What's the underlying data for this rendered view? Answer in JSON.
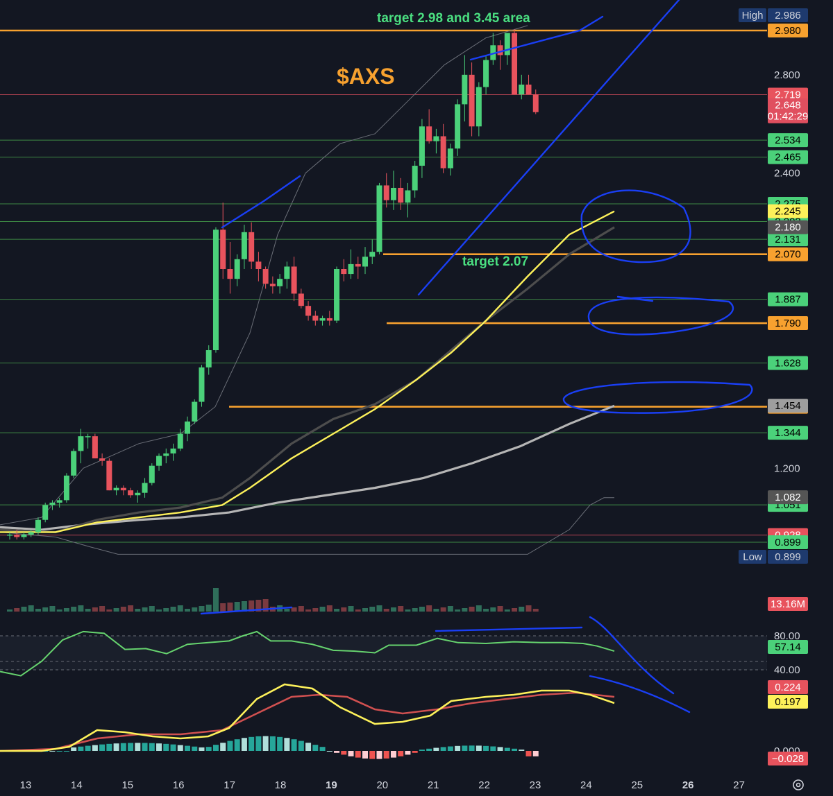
{
  "chart_data": {
    "type": "candlestick",
    "title": "$AXS",
    "annotations": [
      "target  2.98 and 3.45 area",
      "target  2.07"
    ],
    "x_ticks": [
      "13",
      "14",
      "15",
      "16",
      "17",
      "18",
      "19",
      "20",
      "21",
      "22",
      "23",
      "24",
      "25",
      "26",
      "27"
    ],
    "x_bold_ticks": [
      "19",
      "26"
    ],
    "y_ticks": [
      "2.800",
      "2.400",
      "1.200"
    ],
    "ylim": [
      0.85,
      3.0
    ],
    "high": {
      "label": "High",
      "value": "2.986"
    },
    "low": {
      "label": "Low",
      "value": "0.899"
    },
    "price_levels": [
      {
        "value": 2.98,
        "label": "2.980",
        "color": "#f7a12f",
        "style": "orange-line"
      },
      {
        "value": 2.719,
        "label": "2.719",
        "color": "#e04f5f",
        "style": "red-line"
      },
      {
        "value": 2.534,
        "label": "2.534",
        "color": "#4caf50",
        "style": "green-line"
      },
      {
        "value": 2.465,
        "label": "2.465",
        "color": "#4caf50",
        "style": "green-line"
      },
      {
        "value": 2.275,
        "label": "2.275",
        "color": "#4caf50",
        "style": "green-line"
      },
      {
        "value": 2.203,
        "label": "2.203",
        "color": "#4caf50",
        "style": "green-line"
      },
      {
        "value": 2.131,
        "label": "2.131",
        "color": "#4caf50",
        "style": "green-line"
      },
      {
        "value": 2.07,
        "label": "2.070",
        "color": "#f7a12f",
        "style": "orange-line"
      },
      {
        "value": 1.887,
        "label": "1.887",
        "color": "#4caf50",
        "style": "green-line"
      },
      {
        "value": 1.79,
        "label": "1.790",
        "color": "#f7a12f",
        "style": "orange-line"
      },
      {
        "value": 1.628,
        "label": "1.628",
        "color": "#4caf50",
        "style": "green-line"
      },
      {
        "value": 1.45,
        "label": "1.450",
        "color": "#f7a12f",
        "style": "orange-line"
      },
      {
        "value": 1.344,
        "label": "1.344",
        "color": "#4caf50",
        "style": "green-line"
      },
      {
        "value": 1.051,
        "label": "1.051",
        "color": "#4caf50",
        "style": "green-line"
      },
      {
        "value": 0.928,
        "label": "0.928",
        "color": "#e04f5f",
        "style": "red-line"
      },
      {
        "value": 0.899,
        "label": "0.899",
        "color": "#4caf50",
        "style": "green-line"
      }
    ],
    "axis_badges": [
      {
        "value": 2.648,
        "label": "2.648",
        "sub": "01:42:29",
        "color": "#e04f5f"
      },
      {
        "value": 2.245,
        "label": "2.245",
        "color": "#fdf15a"
      },
      {
        "value": 2.18,
        "label": "2.180",
        "color": "#555555"
      },
      {
        "value": 1.454,
        "label": "1.454",
        "color": "#9e9e9e"
      },
      {
        "value": 1.082,
        "label": "1.082",
        "color": "#555555"
      }
    ],
    "candles": [
      [
        0.93,
        0.94,
        0.91,
        0.93
      ],
      [
        0.93,
        0.95,
        0.91,
        0.92
      ],
      [
        0.92,
        0.94,
        0.91,
        0.93
      ],
      [
        0.93,
        0.95,
        0.92,
        0.94
      ],
      [
        0.94,
        1.0,
        0.93,
        0.99
      ],
      [
        0.99,
        1.06,
        0.98,
        1.05
      ],
      [
        1.05,
        1.07,
        1.03,
        1.06
      ],
      [
        1.06,
        1.08,
        1.04,
        1.07
      ],
      [
        1.07,
        1.18,
        1.06,
        1.17
      ],
      [
        1.17,
        1.28,
        1.16,
        1.27
      ],
      [
        1.27,
        1.36,
        1.22,
        1.33
      ],
      [
        1.33,
        1.34,
        1.28,
        1.33
      ],
      [
        1.33,
        1.34,
        1.24,
        1.24
      ],
      [
        1.24,
        1.26,
        1.21,
        1.23
      ],
      [
        1.23,
        1.24,
        1.11,
        1.11
      ],
      [
        1.11,
        1.13,
        1.09,
        1.12
      ],
      [
        1.12,
        1.13,
        1.09,
        1.11
      ],
      [
        1.11,
        1.12,
        1.08,
        1.09
      ],
      [
        1.09,
        1.11,
        1.06,
        1.1
      ],
      [
        1.1,
        1.16,
        1.08,
        1.14
      ],
      [
        1.14,
        1.22,
        1.13,
        1.21
      ],
      [
        1.21,
        1.26,
        1.19,
        1.25
      ],
      [
        1.25,
        1.28,
        1.22,
        1.26
      ],
      [
        1.26,
        1.3,
        1.23,
        1.28
      ],
      [
        1.28,
        1.36,
        1.27,
        1.34
      ],
      [
        1.34,
        1.41,
        1.31,
        1.39
      ],
      [
        1.39,
        1.48,
        1.38,
        1.47
      ],
      [
        1.47,
        1.62,
        1.45,
        1.61
      ],
      [
        1.61,
        1.7,
        1.58,
        1.68
      ],
      [
        1.68,
        2.18,
        1.67,
        2.17
      ],
      [
        2.17,
        2.28,
        1.97,
        2.01
      ],
      [
        2.01,
        2.12,
        1.91,
        1.97
      ],
      [
        1.97,
        2.07,
        1.94,
        2.05
      ],
      [
        2.05,
        2.19,
        2.01,
        2.16
      ],
      [
        2.16,
        2.2,
        2.01,
        2.04
      ],
      [
        2.04,
        2.08,
        1.96,
        2.01
      ],
      [
        2.01,
        2.02,
        1.93,
        1.95
      ],
      [
        1.95,
        1.98,
        1.91,
        1.94
      ],
      [
        1.94,
        1.99,
        1.91,
        1.97
      ],
      [
        1.97,
        2.04,
        1.93,
        2.02
      ],
      [
        2.02,
        2.06,
        1.88,
        1.91
      ],
      [
        1.91,
        1.93,
        1.85,
        1.86
      ],
      [
        1.86,
        1.88,
        1.8,
        1.82
      ],
      [
        1.82,
        1.84,
        1.78,
        1.8
      ],
      [
        1.8,
        1.82,
        1.78,
        1.81
      ],
      [
        1.81,
        1.84,
        1.78,
        1.8
      ],
      [
        1.8,
        2.02,
        1.79,
        2.01
      ],
      [
        2.01,
        2.05,
        1.96,
        1.99
      ],
      [
        1.99,
        2.09,
        1.97,
        2.03
      ],
      [
        2.03,
        2.06,
        1.97,
        2.02
      ],
      [
        2.02,
        2.1,
        1.99,
        2.06
      ],
      [
        2.06,
        2.13,
        2.03,
        2.08
      ],
      [
        2.08,
        2.36,
        2.07,
        2.35
      ],
      [
        2.35,
        2.4,
        2.26,
        2.29
      ],
      [
        2.29,
        2.41,
        2.25,
        2.34
      ],
      [
        2.34,
        2.38,
        2.25,
        2.28
      ],
      [
        2.28,
        2.36,
        2.22,
        2.33
      ],
      [
        2.33,
        2.45,
        2.3,
        2.43
      ],
      [
        2.43,
        2.62,
        2.38,
        2.59
      ],
      [
        2.59,
        2.66,
        2.52,
        2.53
      ],
      [
        2.53,
        2.58,
        2.48,
        2.55
      ],
      [
        2.55,
        2.6,
        2.4,
        2.42
      ],
      [
        2.42,
        2.52,
        2.39,
        2.5
      ],
      [
        2.5,
        2.7,
        2.47,
        2.68
      ],
      [
        2.68,
        2.88,
        2.61,
        2.8
      ],
      [
        2.8,
        2.85,
        2.55,
        2.59
      ],
      [
        2.59,
        2.77,
        2.55,
        2.75
      ],
      [
        2.75,
        2.88,
        2.72,
        2.86
      ],
      [
        2.86,
        2.97,
        2.84,
        2.92
      ],
      [
        2.92,
        2.94,
        2.82,
        2.88
      ],
      [
        2.88,
        2.95,
        2.84,
        2.97
      ],
      [
        2.97,
        2.986,
        2.72,
        2.72
      ],
      [
        2.72,
        2.8,
        2.7,
        2.76
      ],
      [
        2.76,
        2.8,
        2.72,
        2.72
      ],
      [
        2.72,
        2.74,
        2.64,
        2.648
      ]
    ],
    "volume_label": "13.16M",
    "rsi": {
      "ticks": [
        "80.00",
        "40.00"
      ],
      "value": "57.14"
    },
    "macd": {
      "values": [
        "0.224",
        "0.197",
        "−0.028"
      ],
      "tick": "0.000"
    }
  }
}
